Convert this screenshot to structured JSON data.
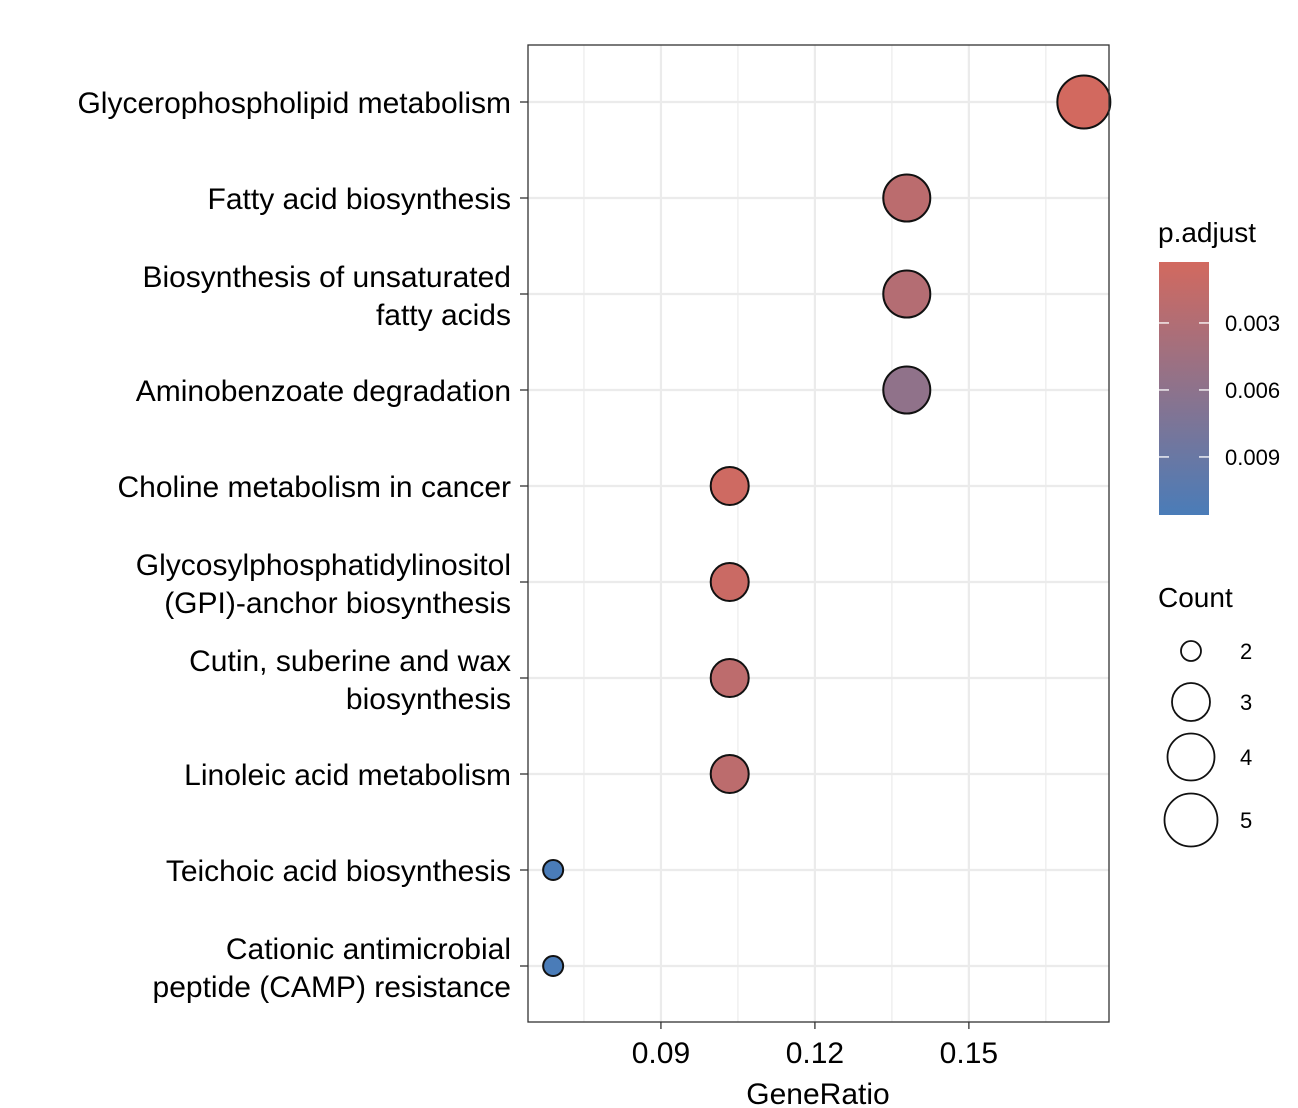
{
  "chart_data": {
    "type": "scatter",
    "title": "",
    "xlabel": "GeneRatio",
    "ylabel": "",
    "xlim": [
      0.0641,
      0.1773
    ],
    "xticks": [
      0.09,
      0.12,
      0.15
    ],
    "xtick_labels": [
      "0.09",
      "0.12",
      "0.15"
    ],
    "grid": true,
    "categories": [
      [
        "Glycerophospholipid metabolism"
      ],
      [
        "Fatty acid biosynthesis"
      ],
      [
        "Biosynthesis of unsaturated",
        "fatty acids"
      ],
      [
        "Aminobenzoate degradation"
      ],
      [
        "Choline metabolism in cancer"
      ],
      [
        "Glycosylphosphatidylinositol",
        "(GPI)-anchor biosynthesis"
      ],
      [
        "Cutin, suberine and wax",
        "biosynthesis"
      ],
      [
        "Linoleic acid metabolism"
      ],
      [
        "Teichoic acid biosynthesis"
      ],
      [
        "Cationic antimicrobial",
        "peptide (CAMP) resistance"
      ]
    ],
    "gene_ratio": [
      0.1724,
      0.1379,
      0.1379,
      0.1379,
      0.1034,
      0.1034,
      0.1034,
      0.1034,
      0.069,
      0.069
    ],
    "count": [
      5,
      4,
      4,
      4,
      3,
      3,
      3,
      3,
      2,
      2
    ],
    "p_adjust": [
      0.0003,
      0.0022,
      0.0028,
      0.0058,
      0.0006,
      0.0009,
      0.002,
      0.0021,
      0.0116,
      0.0116
    ],
    "color_legend": {
      "title": "p.adjust",
      "range": [
        0.00027,
        0.0116
      ],
      "ticks": [
        0.003,
        0.006,
        0.009
      ],
      "tick_labels": [
        "0.003",
        "0.006",
        "0.009"
      ],
      "low_color": "#d2695f",
      "high_color": "#4a7cb8",
      "placement": "right"
    },
    "size_legend": {
      "title": "Count",
      "values": [
        2,
        3,
        4,
        5
      ],
      "labels": [
        "2",
        "3",
        "4",
        "5"
      ],
      "placement": "right"
    }
  }
}
